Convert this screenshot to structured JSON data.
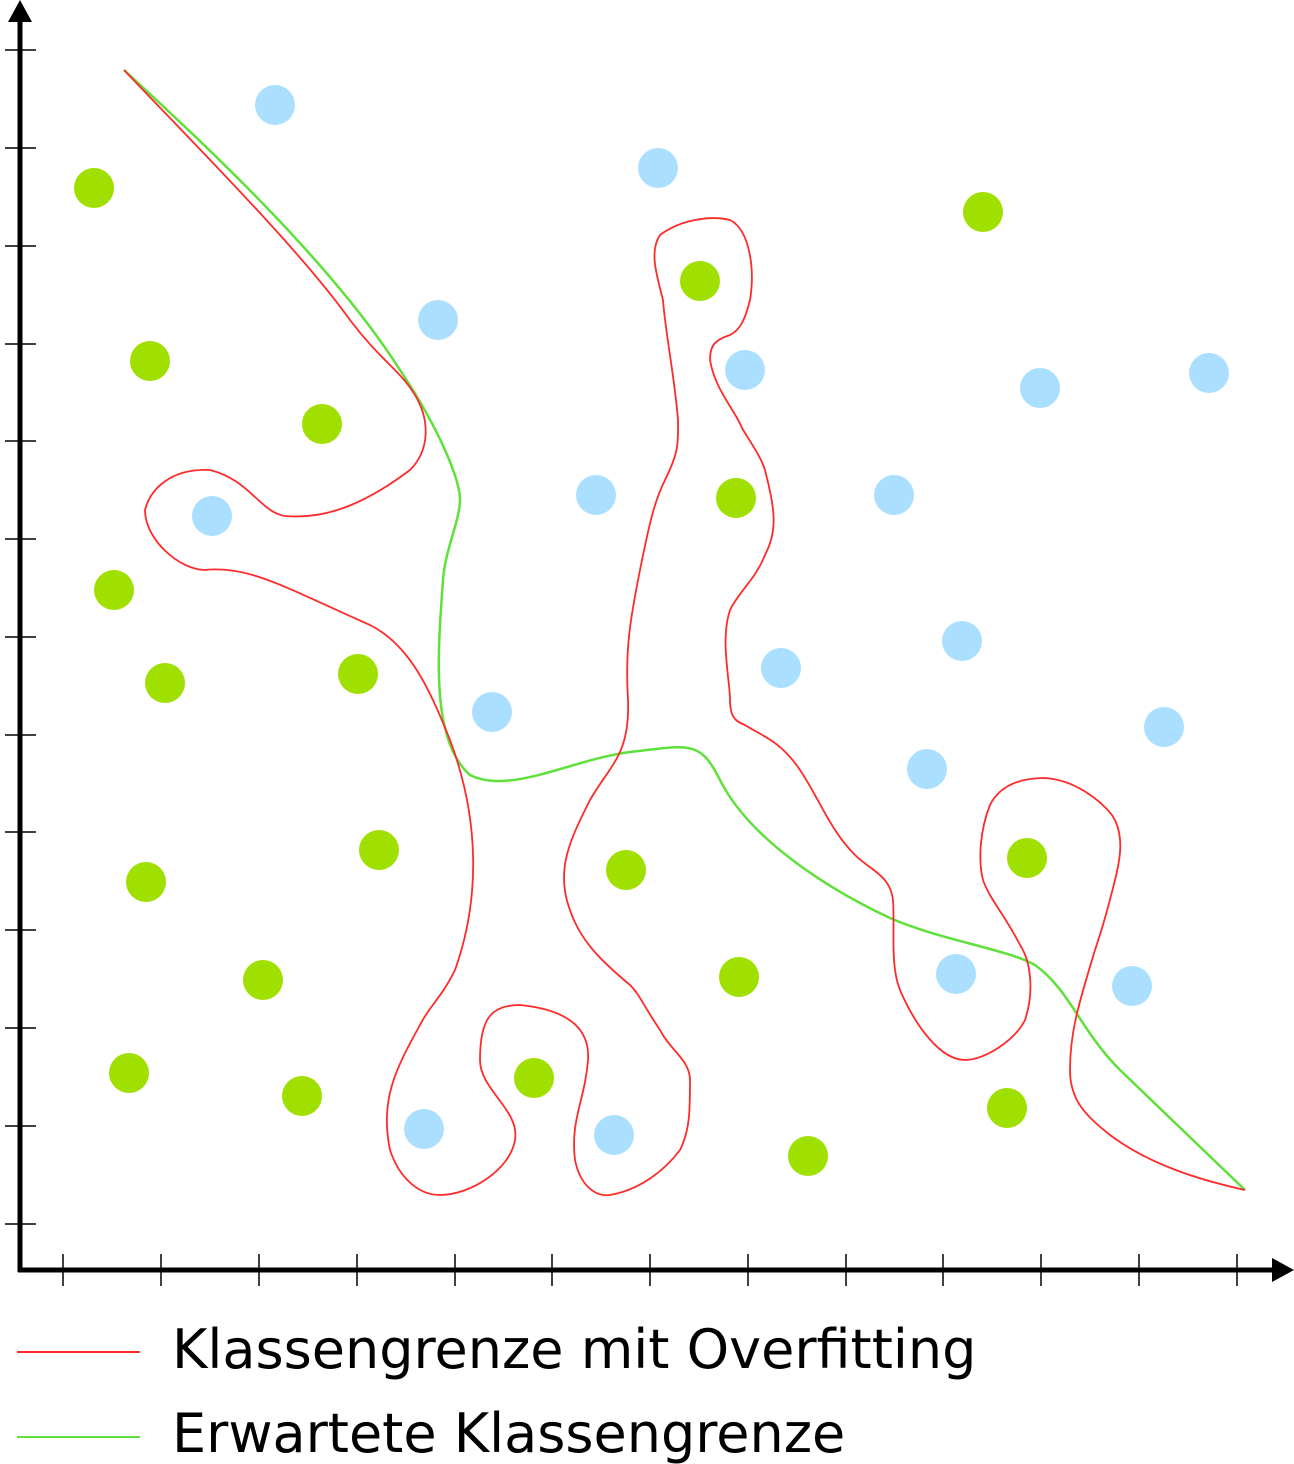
{
  "legend": {
    "overfit_label": "Klassengrenze mit Overfitting",
    "expected_label": "Erwartete Klassengrenze"
  },
  "colors": {
    "overfit_line": "#ff2a2a",
    "expected_line": "#5fe03a",
    "class_a_point": "#a0e000",
    "class_b_point": "#aadfff",
    "axes": "#000000"
  },
  "classes": {
    "class_a_count": 20,
    "class_b_count": 18
  }
}
